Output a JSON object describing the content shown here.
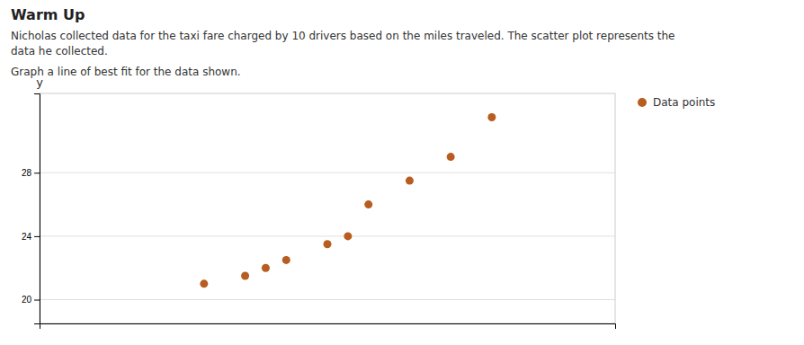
{
  "chart_data": {
    "type": "scatter",
    "title": "Warm Up",
    "subtitle": "Nicholas collected data for the taxi fare charged by 10 drivers based on the miles traveled. The scatter plot represents the\ndata he collected.",
    "annotations": [
      "Graph a line of best fit for the data shown."
    ],
    "y_label": "y",
    "x": [
      4,
      5,
      5.5,
      6,
      7,
      7.5,
      8,
      9,
      10,
      11
    ],
    "series": [
      {
        "name": "Data points",
        "color": "#b85c20",
        "values": [
          21.0,
          21.5,
          22.0,
          22.5,
          23.5,
          24.0,
          26.0,
          27.5,
          29.0,
          31.5
        ]
      }
    ],
    "xlim": [
      0,
      14
    ],
    "ylim": [
      18.5,
      33
    ],
    "yticks": [
      20,
      24,
      28
    ],
    "grid": true,
    "tick_labels": "y",
    "legend": "right"
  }
}
